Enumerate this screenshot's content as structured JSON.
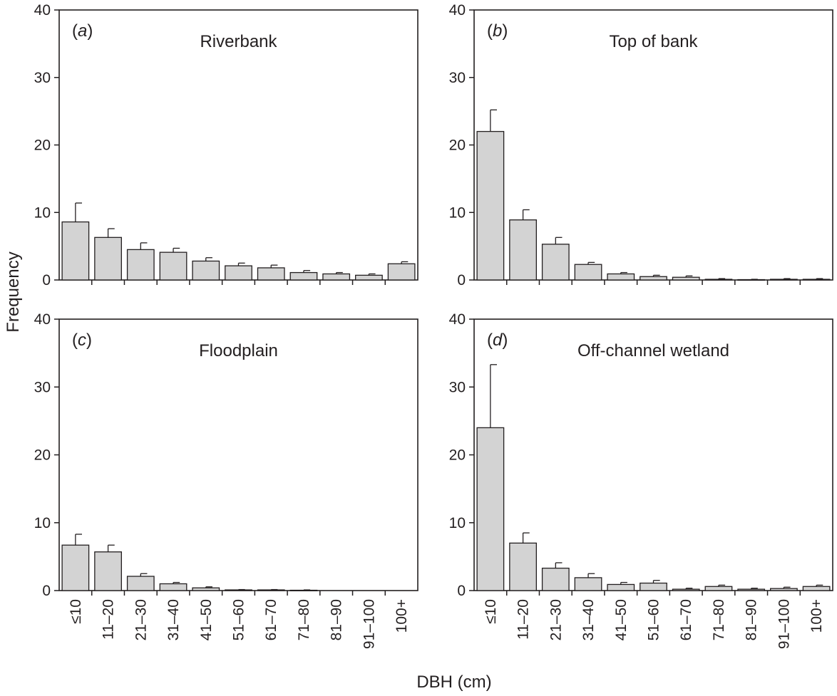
{
  "figure": {
    "ylabel": "Frequency",
    "xlabel": "DBH (cm)",
    "bar_color": "#d3d3d3",
    "axis_color": "#231f20"
  },
  "chart_data": [
    {
      "type": "bar",
      "panel_letter": "a",
      "title": "Riverbank",
      "categories": [
        "≤10",
        "11–20",
        "21–30",
        "31–40",
        "41–50",
        "51–60",
        "61–70",
        "71–80",
        "81–90",
        "91–100",
        "100+"
      ],
      "values": [
        8.6,
        6.3,
        4.5,
        4.1,
        2.8,
        2.1,
        1.8,
        1.1,
        0.9,
        0.7,
        2.4
      ],
      "errors": [
        2.8,
        1.3,
        1.0,
        0.6,
        0.5,
        0.4,
        0.4,
        0.3,
        0.2,
        0.2,
        0.3
      ],
      "ylim": [
        0,
        40
      ],
      "yticks": [
        0,
        10,
        20,
        30,
        40
      ],
      "show_xtick_labels": false
    },
    {
      "type": "bar",
      "panel_letter": "b",
      "title": "Top of bank",
      "categories": [
        "≤10",
        "11–20",
        "21–30",
        "31–40",
        "41–50",
        "51–60",
        "61–70",
        "71–80",
        "81–90",
        "91–100",
        "100+"
      ],
      "values": [
        22.0,
        8.9,
        5.3,
        2.3,
        0.9,
        0.5,
        0.4,
        0.1,
        0.05,
        0.1,
        0.1
      ],
      "errors": [
        3.2,
        1.5,
        1.0,
        0.3,
        0.2,
        0.2,
        0.2,
        0.1,
        0.05,
        0.1,
        0.1
      ],
      "ylim": [
        0,
        40
      ],
      "yticks": [
        0,
        10,
        20,
        30,
        40
      ],
      "show_xtick_labels": false
    },
    {
      "type": "bar",
      "panel_letter": "c",
      "title": "Floodplain",
      "categories": [
        "≤10",
        "11–20",
        "21–30",
        "31–40",
        "41–50",
        "51–60",
        "61–70",
        "71–80",
        "81–90",
        "91–100",
        "100+"
      ],
      "values": [
        6.7,
        5.7,
        2.1,
        1.0,
        0.4,
        0.1,
        0.1,
        0.05,
        0,
        0,
        0
      ],
      "errors": [
        1.6,
        1.0,
        0.4,
        0.2,
        0.15,
        0.05,
        0.05,
        0.05,
        0,
        0,
        0
      ],
      "ylim": [
        0,
        40
      ],
      "yticks": [
        0,
        10,
        20,
        30,
        40
      ],
      "show_xtick_labels": true
    },
    {
      "type": "bar",
      "panel_letter": "d",
      "title": "Off-channel wetland",
      "categories": [
        "≤10",
        "11–20",
        "21–30",
        "31–40",
        "41–50",
        "51–60",
        "61–70",
        "71–80",
        "81–90",
        "91–100",
        "100+"
      ],
      "values": [
        24.0,
        7.0,
        3.3,
        1.9,
        0.9,
        1.1,
        0.2,
        0.6,
        0.2,
        0.3,
        0.6
      ],
      "errors": [
        9.3,
        1.5,
        0.8,
        0.6,
        0.3,
        0.4,
        0.15,
        0.2,
        0.15,
        0.2,
        0.2
      ],
      "ylim": [
        0,
        40
      ],
      "yticks": [
        0,
        10,
        20,
        30,
        40
      ],
      "show_xtick_labels": true
    }
  ]
}
